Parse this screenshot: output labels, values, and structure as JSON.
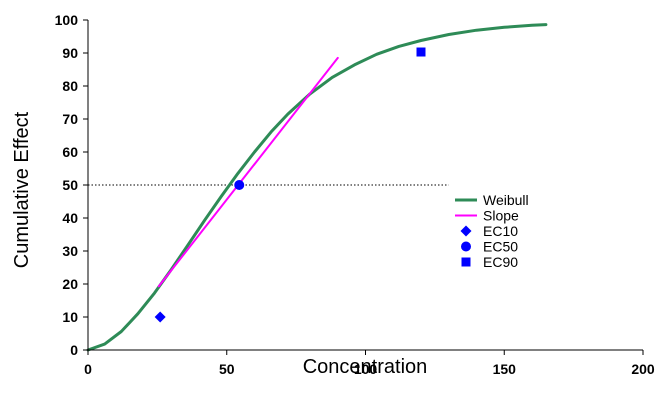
{
  "chart_data": {
    "type": "line",
    "xlabel": "Concentration",
    "ylabel": "Cumulative Effect",
    "xlim": [
      0,
      200
    ],
    "ylim": [
      0,
      100
    ],
    "xticks": [
      "0",
      "50",
      "100",
      "150",
      "200"
    ],
    "yticks": [
      "0",
      "10",
      "20",
      "30",
      "40",
      "50",
      "60",
      "70",
      "80",
      "90",
      "100"
    ],
    "grid": false,
    "legend_position": "right",
    "reference_line": {
      "y": 50,
      "x_range": [
        0,
        130
      ],
      "style": "dotted",
      "color": "#000000"
    },
    "series": [
      {
        "name": "Weibull",
        "kind": "line",
        "color": "#2e8b57",
        "x": [
          0,
          6,
          12,
          18,
          24,
          30,
          36,
          42,
          48,
          54,
          60,
          66,
          72,
          80,
          88,
          96,
          104,
          112,
          120,
          130,
          140,
          150,
          160,
          165
        ],
        "y": [
          0,
          1.8,
          5.6,
          11,
          17.3,
          24.4,
          31.8,
          39.3,
          46.5,
          53.5,
          60,
          66.1,
          71.5,
          77.6,
          82.6,
          86.4,
          89.6,
          92,
          93.8,
          95.6,
          96.9,
          97.8,
          98.4,
          98.6
        ]
      },
      {
        "name": "Slope",
        "kind": "line",
        "color": "#ff00ff",
        "x": [
          25.5,
          90
        ],
        "y": [
          19.3,
          88.5
        ]
      },
      {
        "name": "EC10",
        "kind": "marker",
        "marker": "diamond",
        "color": "#0000ff",
        "x": [
          26
        ],
        "y": [
          10
        ]
      },
      {
        "name": "EC50",
        "kind": "marker",
        "marker": "circle",
        "color": "#0000ff",
        "x": [
          54.5
        ],
        "y": [
          50
        ]
      },
      {
        "name": "EC90",
        "kind": "marker",
        "marker": "square",
        "color": "#0000ff",
        "x": [
          120
        ],
        "y": [
          90.3
        ]
      }
    ]
  }
}
